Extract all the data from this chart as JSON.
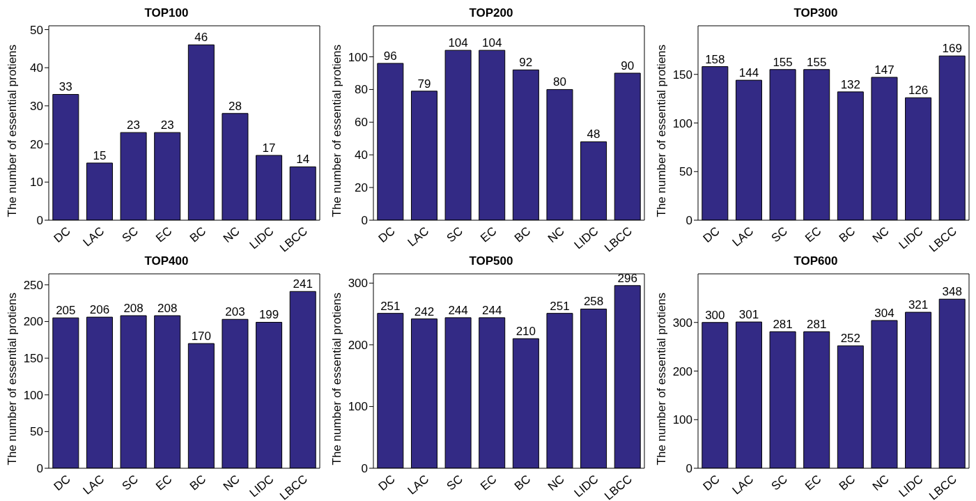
{
  "chart_data": [
    {
      "type": "bar",
      "title": "TOP100",
      "ylabel": "The number of essential protiens",
      "categories": [
        "DC",
        "LAC",
        "SC",
        "EC",
        "BC",
        "NC",
        "LIDC",
        "LBCC"
      ],
      "values": [
        33,
        15,
        23,
        23,
        46,
        28,
        17,
        14
      ],
      "color": "#332a85",
      "ylim": [
        0,
        51
      ],
      "yticks": [
        0,
        10,
        20,
        30,
        40,
        50
      ],
      "data_labels": true
    },
    {
      "type": "bar",
      "title": "TOP200",
      "ylabel": "The number of essential protiens",
      "categories": [
        "DC",
        "LAC",
        "SC",
        "EC",
        "BC",
        "NC",
        "LIDC",
        "LBCC"
      ],
      "values": [
        96,
        79,
        104,
        104,
        92,
        80,
        48,
        90
      ],
      "color": "#332a85",
      "ylim": [
        0,
        119
      ],
      "yticks": [
        0,
        20,
        40,
        60,
        80,
        100
      ],
      "data_labels": true
    },
    {
      "type": "bar",
      "title": "TOP300",
      "ylabel": "The number of essential protiens",
      "categories": [
        "DC",
        "LAC",
        "SC",
        "EC",
        "BC",
        "NC",
        "LIDC",
        "LBCC"
      ],
      "values": [
        158,
        144,
        155,
        155,
        132,
        147,
        126,
        169
      ],
      "color": "#332a85",
      "ylim": [
        0,
        200
      ],
      "yticks": [
        0,
        50,
        100,
        150
      ],
      "data_labels": true
    },
    {
      "type": "bar",
      "title": "TOP400",
      "ylabel": "The number of essential protiens",
      "categories": [
        "DC",
        "LAC",
        "SC",
        "EC",
        "BC",
        "NC",
        "LIDC",
        "LBCC"
      ],
      "values": [
        205,
        206,
        208,
        208,
        170,
        203,
        199,
        241
      ],
      "color": "#332a85",
      "ylim": [
        0,
        265
      ],
      "yticks": [
        0,
        50,
        100,
        150,
        200,
        250
      ],
      "data_labels": true
    },
    {
      "type": "bar",
      "title": "TOP500",
      "ylabel": "The number of essential protiens",
      "categories": [
        "DC",
        "LAC",
        "SC",
        "EC",
        "BC",
        "NC",
        "LIDC",
        "LBCC"
      ],
      "values": [
        251,
        242,
        244,
        244,
        210,
        251,
        258,
        296
      ],
      "color": "#332a85",
      "ylim": [
        0,
        315
      ],
      "yticks": [
        0,
        100,
        200,
        300
      ],
      "data_labels": true
    },
    {
      "type": "bar",
      "title": "TOP600",
      "ylabel": "The number of essential protiens",
      "categories": [
        "DC",
        "LAC",
        "SC",
        "EC",
        "BC",
        "NC",
        "LIDC",
        "LBCC"
      ],
      "values": [
        300,
        301,
        281,
        281,
        252,
        304,
        321,
        348
      ],
      "color": "#332a85",
      "ylim": [
        0,
        400
      ],
      "yticks": [
        0,
        100,
        200,
        300
      ],
      "data_labels": true
    }
  ]
}
